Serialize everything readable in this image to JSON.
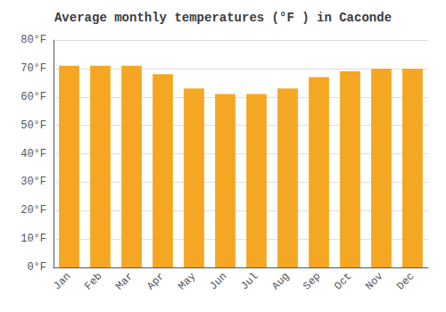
{
  "chart_data": {
    "type": "bar",
    "title": "Average monthly temperatures (°F ) in Caconde",
    "categories": [
      "Jan",
      "Feb",
      "Mar",
      "Apr",
      "May",
      "Jun",
      "Jul",
      "Aug",
      "Sep",
      "Oct",
      "Nov",
      "Dec"
    ],
    "values": [
      71,
      71,
      71,
      68,
      63,
      61,
      61,
      63,
      67,
      69,
      70,
      70
    ],
    "color": "#F5A623",
    "ylim": [
      0,
      80
    ],
    "yticks": [
      {
        "value": 0,
        "label": "0°F"
      },
      {
        "value": 10,
        "label": "10°F"
      },
      {
        "value": 20,
        "label": "20°F"
      },
      {
        "value": 30,
        "label": "30°F"
      },
      {
        "value": 40,
        "label": "40°F"
      },
      {
        "value": 50,
        "label": "50°F"
      },
      {
        "value": 60,
        "label": "60°F"
      },
      {
        "value": 70,
        "label": "70°F"
      },
      {
        "value": 80,
        "label": "80°F"
      }
    ],
    "grid": true
  }
}
